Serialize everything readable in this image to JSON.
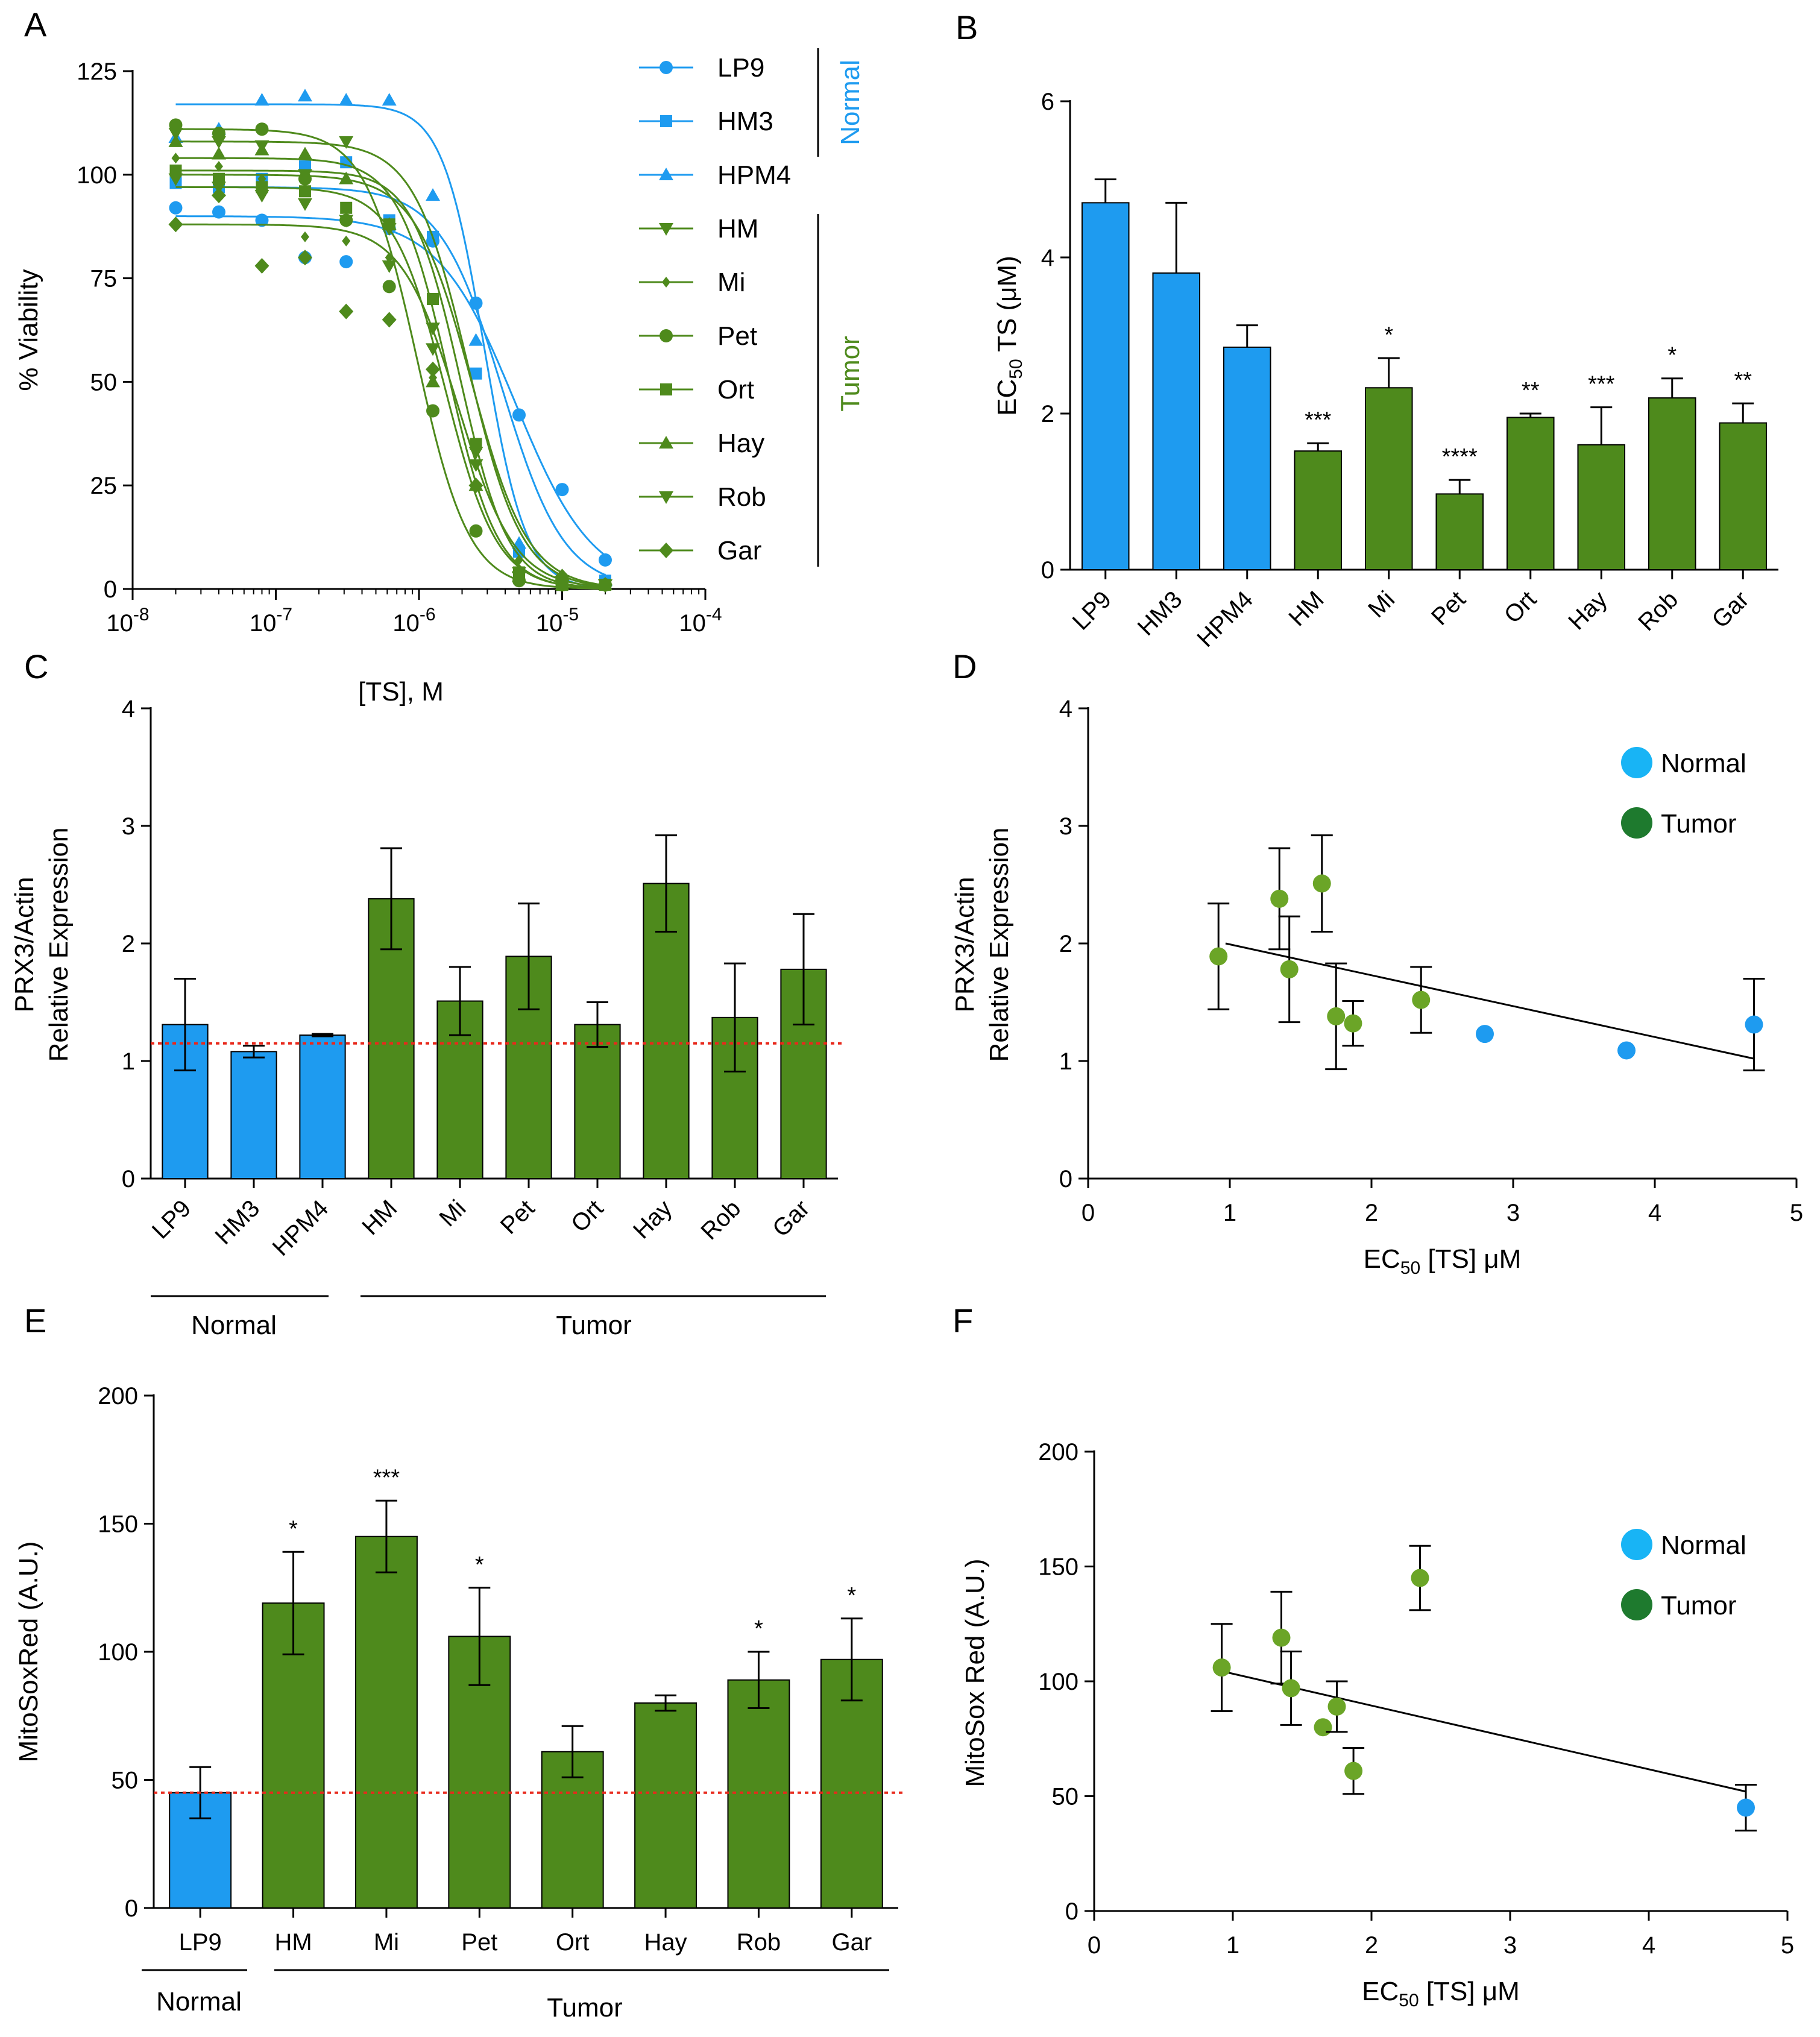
{
  "colors": {
    "normal": "#1E9BF0",
    "tumor": "#4E8A1C",
    "tumor_light": "#6BA527",
    "reference": "#E8291C",
    "axis": "#000000"
  },
  "chart_data": [
    {
      "panel": "A",
      "type": "line",
      "title": "",
      "xlabel": "[TS], M",
      "ylabel": "% Viability",
      "xscale": "log",
      "xlim": [
        1e-08,
        0.0001
      ],
      "ylim": [
        0,
        125
      ],
      "xtick_base": "10",
      "xtick_exponents": [
        "-8",
        "-7",
        "-6",
        "-5",
        "-4"
      ],
      "yticks": [
        "0",
        "25",
        "50",
        "75",
        "100",
        "125"
      ],
      "x": [
        2e-08,
        4e-08,
        8e-08,
        1.6e-07,
        3.1e-07,
        6.2e-07,
        1.25e-06,
        2.5e-06,
        5e-06,
        1e-05,
        2e-05
      ],
      "group_labels": {
        "normal": "Normal",
        "tumor": "Tumor"
      },
      "series": [
        {
          "name": "LP9",
          "group": "normal",
          "marker": "circle",
          "top": 90,
          "ec50": 4.7e-06,
          "hill": 1.6,
          "values": [
            92,
            91,
            89,
            80,
            79,
            87,
            84,
            69,
            42,
            24,
            7
          ]
        },
        {
          "name": "HM3",
          "group": "normal",
          "marker": "square",
          "top": 97,
          "ec50": 3.8e-06,
          "hill": 2.0,
          "values": [
            98,
            97,
            99,
            102,
            103,
            89,
            85,
            52,
            9,
            1,
            2
          ]
        },
        {
          "name": "HPM4",
          "group": "normal",
          "marker": "triangle",
          "top": 117,
          "ec50": 2.85e-06,
          "hill": 3.0,
          "values": [
            109,
            111,
            118,
            119,
            118,
            118,
            95,
            60,
            11,
            3,
            2
          ]
        },
        {
          "name": "HM",
          "group": "tumor",
          "marker": "triangle-down",
          "top": 97,
          "ec50": 1.52e-06,
          "hill": 2.4,
          "values": [
            99,
            97,
            95,
            93,
            89,
            78,
            58,
            33,
            3,
            1,
            1
          ]
        },
        {
          "name": "Mi",
          "group": "tumor",
          "marker": "small-diamond",
          "top": 100,
          "ec50": 2.33e-06,
          "hill": 2.2,
          "values": [
            104,
            102,
            99,
            85,
            84,
            80,
            51,
            34,
            7,
            2,
            1
          ]
        },
        {
          "name": "Pet",
          "group": "tumor",
          "marker": "circle",
          "top": 111,
          "ec50": 9.7e-07,
          "hill": 2.4,
          "values": [
            112,
            110,
            111,
            99,
            89,
            73,
            43,
            14,
            2,
            1,
            1
          ]
        },
        {
          "name": "Ort",
          "group": "tumor",
          "marker": "square",
          "top": 101,
          "ec50": 1.95e-06,
          "hill": 2.6,
          "values": [
            101,
            99,
            97,
            96,
            92,
            88,
            70,
            35,
            4,
            1,
            1
          ]
        },
        {
          "name": "Hay",
          "group": "tumor",
          "marker": "triangle",
          "top": 104,
          "ec50": 1.6e-06,
          "hill": 2.5,
          "values": [
            108,
            105,
            106,
            105,
            99,
            88,
            50,
            25,
            3,
            1,
            1
          ]
        },
        {
          "name": "Rob",
          "group": "tumor",
          "marker": "triangle-down",
          "top": 108,
          "ec50": 2.2e-06,
          "hill": 2.3,
          "values": [
            110,
            108,
            107,
            100,
            108,
            87,
            63,
            30,
            4,
            1,
            1
          ]
        },
        {
          "name": "Gar",
          "group": "tumor",
          "marker": "diamond",
          "top": 88,
          "ec50": 1.88e-06,
          "hill": 2.2,
          "values": [
            88,
            95,
            78,
            80,
            67,
            65,
            53,
            25,
            4,
            3,
            1
          ]
        }
      ]
    },
    {
      "panel": "B",
      "type": "bar",
      "categories": [
        "LP9",
        "HM3",
        "HPM4",
        "HM",
        "Mi",
        "Pet",
        "Ort",
        "Hay",
        "Rob",
        "Gar"
      ],
      "groups": [
        "normal",
        "normal",
        "normal",
        "tumor",
        "tumor",
        "tumor",
        "tumor",
        "tumor",
        "tumor",
        "tumor"
      ],
      "values": [
        4.7,
        3.8,
        2.85,
        1.52,
        2.33,
        0.97,
        1.95,
        1.6,
        2.2,
        1.88
      ],
      "errors": [
        0.3,
        0.9,
        0.28,
        0.1,
        0.38,
        0.18,
        0.05,
        0.48,
        0.25,
        0.25
      ],
      "significance": [
        "",
        "",
        "",
        "***",
        "*",
        "****",
        "**",
        "***",
        "*",
        "**"
      ],
      "ylabel": "EC50 TS (μM)",
      "ylabel_main": "EC",
      "ylabel_sub": "50",
      "ylabel_rest": " TS (μM)",
      "ylim": [
        0,
        6
      ],
      "yticks": [
        "0",
        "2",
        "4",
        "6"
      ]
    },
    {
      "panel": "C",
      "type": "bar",
      "categories": [
        "LP9",
        "HM3",
        "HPM4",
        "HM",
        "Mi",
        "Pet",
        "Ort",
        "Hay",
        "Rob",
        "Gar"
      ],
      "groups": [
        "normal",
        "normal",
        "normal",
        "tumor",
        "tumor",
        "tumor",
        "tumor",
        "tumor",
        "tumor",
        "tumor"
      ],
      "values": [
        1.31,
        1.08,
        1.22,
        2.38,
        1.51,
        1.89,
        1.31,
        2.51,
        1.37,
        1.78
      ],
      "errors": [
        0.39,
        0.05,
        0.01,
        0.43,
        0.29,
        0.45,
        0.19,
        0.41,
        0.46,
        0.47
      ],
      "reference_line": 1.15,
      "ylabel_line1": "PRX3/Actin",
      "ylabel_line2": "Relative Expression",
      "ylim": [
        0,
        4
      ],
      "yticks": [
        "0",
        "1",
        "2",
        "3",
        "4"
      ],
      "group_labels": [
        "Normal",
        "Tumor"
      ]
    },
    {
      "panel": "D",
      "type": "scatter",
      "xlabel": "EC50 [TS] μM",
      "xlabel_main": "EC",
      "xlabel_sub": "50",
      "xlabel_rest": " [TS] μM",
      "ylabel_line1": "PRX3/Actin",
      "ylabel_line2": "Relative Expression",
      "xlim": [
        0,
        5
      ],
      "ylim": [
        0,
        4
      ],
      "xticks": [
        "0",
        "1",
        "2",
        "3",
        "4",
        "5"
      ],
      "yticks": [
        "0",
        "1",
        "2",
        "3",
        "4"
      ],
      "legend": [
        "Normal",
        "Tumor"
      ],
      "fit_line": {
        "x": [
          0.97,
          4.7
        ],
        "y": [
          2.0,
          1.02
        ]
      },
      "points": [
        {
          "group": "tumor",
          "x": 0.92,
          "y": 1.89,
          "err": 0.45
        },
        {
          "group": "tumor",
          "x": 1.35,
          "y": 2.38,
          "err": 0.43
        },
        {
          "group": "tumor",
          "x": 1.42,
          "y": 1.78,
          "err": 0.45
        },
        {
          "group": "tumor",
          "x": 1.65,
          "y": 2.51,
          "err": 0.41
        },
        {
          "group": "tumor",
          "x": 1.75,
          "y": 1.38,
          "err": 0.45
        },
        {
          "group": "tumor",
          "x": 1.87,
          "y": 1.32,
          "err": 0.19
        },
        {
          "group": "tumor",
          "x": 2.35,
          "y": 1.52,
          "err": 0.28
        },
        {
          "group": "normal",
          "x": 2.8,
          "y": 1.23,
          "err": 0
        },
        {
          "group": "normal",
          "x": 3.8,
          "y": 1.09,
          "err": 0
        },
        {
          "group": "normal",
          "x": 4.7,
          "y": 1.31,
          "err": 0.39
        }
      ]
    },
    {
      "panel": "E",
      "type": "bar",
      "categories": [
        "LP9",
        "HM",
        "Mi",
        "Pet",
        "Ort",
        "Hay",
        "Rob",
        "Gar"
      ],
      "groups": [
        "normal",
        "tumor",
        "tumor",
        "tumor",
        "tumor",
        "tumor",
        "tumor",
        "tumor"
      ],
      "values": [
        45,
        119,
        145,
        106,
        61,
        80,
        89,
        97
      ],
      "errors": [
        10,
        20,
        14,
        19,
        10,
        3,
        11,
        16
      ],
      "significance": [
        "",
        "*",
        "***",
        "*",
        "",
        "",
        "*",
        "*"
      ],
      "reference_line": 45,
      "ylabel": "MitoSoxRed (A.U.)",
      "ylim": [
        0,
        200
      ],
      "yticks": [
        "0",
        "50",
        "100",
        "150",
        "200"
      ],
      "group_labels": [
        "Normal",
        "Tumor"
      ]
    },
    {
      "panel": "F",
      "type": "scatter",
      "xlabel": "EC50 [TS] μM",
      "xlabel_main": "EC",
      "xlabel_sub": "50",
      "xlabel_rest": " [TS] μM",
      "ylabel": "MitoSox Red (A.U.)",
      "xlim": [
        0,
        5
      ],
      "ylim": [
        0,
        200
      ],
      "xticks": [
        "0",
        "1",
        "2",
        "3",
        "4",
        "5"
      ],
      "yticks": [
        "0",
        "50",
        "100",
        "150",
        "200"
      ],
      "legend": [
        "Normal",
        "Tumor"
      ],
      "fit_line": {
        "x": [
          0.95,
          4.7
        ],
        "y": [
          104,
          52
        ]
      },
      "points": [
        {
          "group": "tumor",
          "x": 0.92,
          "y": 106,
          "err": 19
        },
        {
          "group": "tumor",
          "x": 1.35,
          "y": 119,
          "err": 20
        },
        {
          "group": "tumor",
          "x": 1.42,
          "y": 97,
          "err": 16
        },
        {
          "group": "tumor",
          "x": 1.65,
          "y": 80,
          "err": 0
        },
        {
          "group": "tumor",
          "x": 1.75,
          "y": 89,
          "err": 11
        },
        {
          "group": "tumor",
          "x": 1.87,
          "y": 61,
          "err": 10
        },
        {
          "group": "tumor",
          "x": 2.35,
          "y": 145,
          "err": 14
        },
        {
          "group": "normal",
          "x": 4.7,
          "y": 45,
          "err": 10
        }
      ]
    }
  ]
}
